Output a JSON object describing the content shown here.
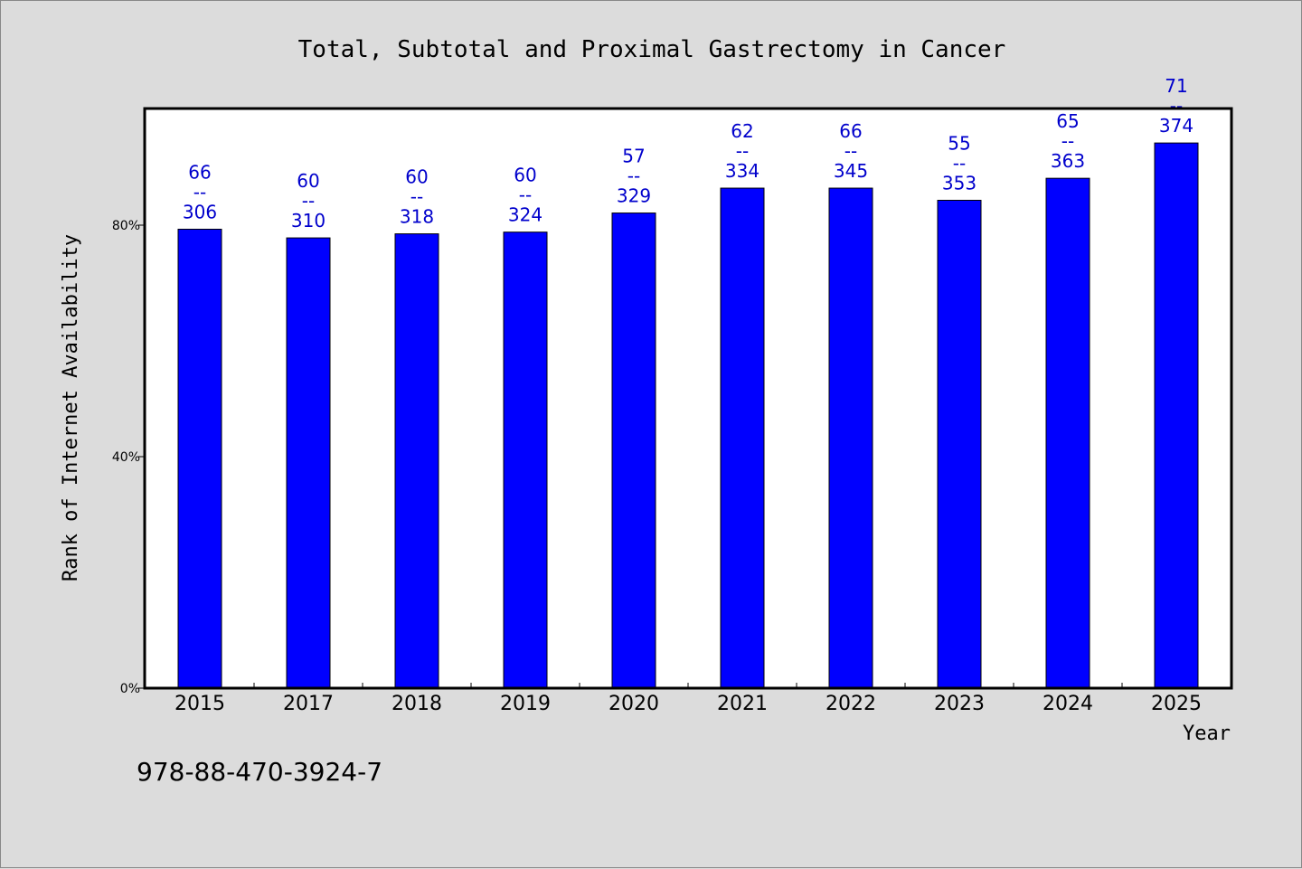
{
  "chart_data": {
    "type": "bar",
    "title": "Total, Subtotal and Proximal Gastrectomy in Cancer",
    "xlabel": "Year",
    "ylabel": "Rank of Internet Availability",
    "categories": [
      "2015",
      "2017",
      "2018",
      "2019",
      "2020",
      "2021",
      "2022",
      "2023",
      "2024",
      "2025"
    ],
    "values": [
      79.3,
      77.8,
      78.5,
      78.8,
      82.1,
      86.4,
      86.4,
      84.3,
      88.1,
      94.2
    ],
    "bar_labels": [
      [
        "66",
        "--",
        "306"
      ],
      [
        "60",
        "--",
        "310"
      ],
      [
        "60",
        "--",
        "318"
      ],
      [
        "60",
        "--",
        "324"
      ],
      [
        "57",
        "--",
        "329"
      ],
      [
        "62",
        "--",
        "334"
      ],
      [
        "66",
        "--",
        "345"
      ],
      [
        "55",
        "--",
        "353"
      ],
      [
        "65",
        "--",
        "363"
      ],
      [
        "71",
        "--",
        "374"
      ]
    ],
    "yticks": [
      0,
      40,
      80
    ],
    "ytick_labels": [
      "0%",
      "40%",
      "80%"
    ],
    "ylim": [
      0,
      100
    ],
    "grid": false,
    "colors": {
      "bar": "#0000ff",
      "bar_label": "#0000cc",
      "plot_bg": "#ffffff",
      "page_bg": "#dcdcdc"
    }
  },
  "footer": {
    "isbn": "978-88-470-3924-7"
  }
}
